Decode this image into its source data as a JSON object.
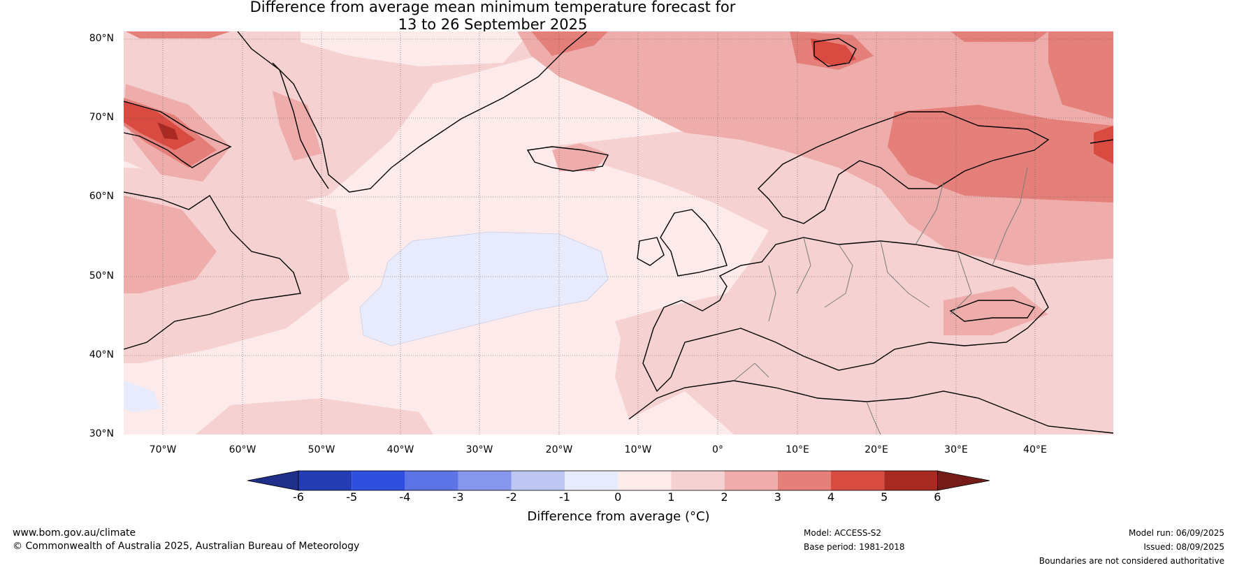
{
  "title_line1": "Difference from average mean minimum temperature forecast for",
  "title_line2": "13 to 26 September 2025",
  "latitude_labels": [
    "80°N",
    "70°N",
    "60°N",
    "50°N",
    "40°N",
    "30°N"
  ],
  "longitude_labels": [
    "70°W",
    "60°W",
    "50°W",
    "40°W",
    "30°W",
    "20°W",
    "10°W",
    "0°",
    "10°E",
    "20°E",
    "30°E",
    "40°E"
  ],
  "colorbar": {
    "label": "Difference from average (°C)",
    "ticks": [
      "-6",
      "-5",
      "-4",
      "-3",
      "-2",
      "-1",
      "0",
      "1",
      "2",
      "3",
      "4",
      "5",
      "6"
    ],
    "colors": [
      "#1f2f8a",
      "#243db5",
      "#2e4ee0",
      "#5c74e6",
      "#8797eb",
      "#bec7f3",
      "#e8ebfb",
      "#fcebea",
      "#f5d2d1",
      "#eeadab",
      "#e57f7a",
      "#d94a40",
      "#a82a22",
      "#751c18"
    ]
  },
  "footer": {
    "website": "www.bom.gov.au/climate",
    "copyright": "© Commonwealth of Australia 2025, Australian Bureau of Meteorology",
    "model": "Model: ACCESS-S2",
    "base_period": "Base period: 1981-2018",
    "model_run": "Model run: 06/09/2025",
    "issued": "Issued: 08/09/2025",
    "disclaimer": "Boundaries are not considered authoritative"
  }
}
